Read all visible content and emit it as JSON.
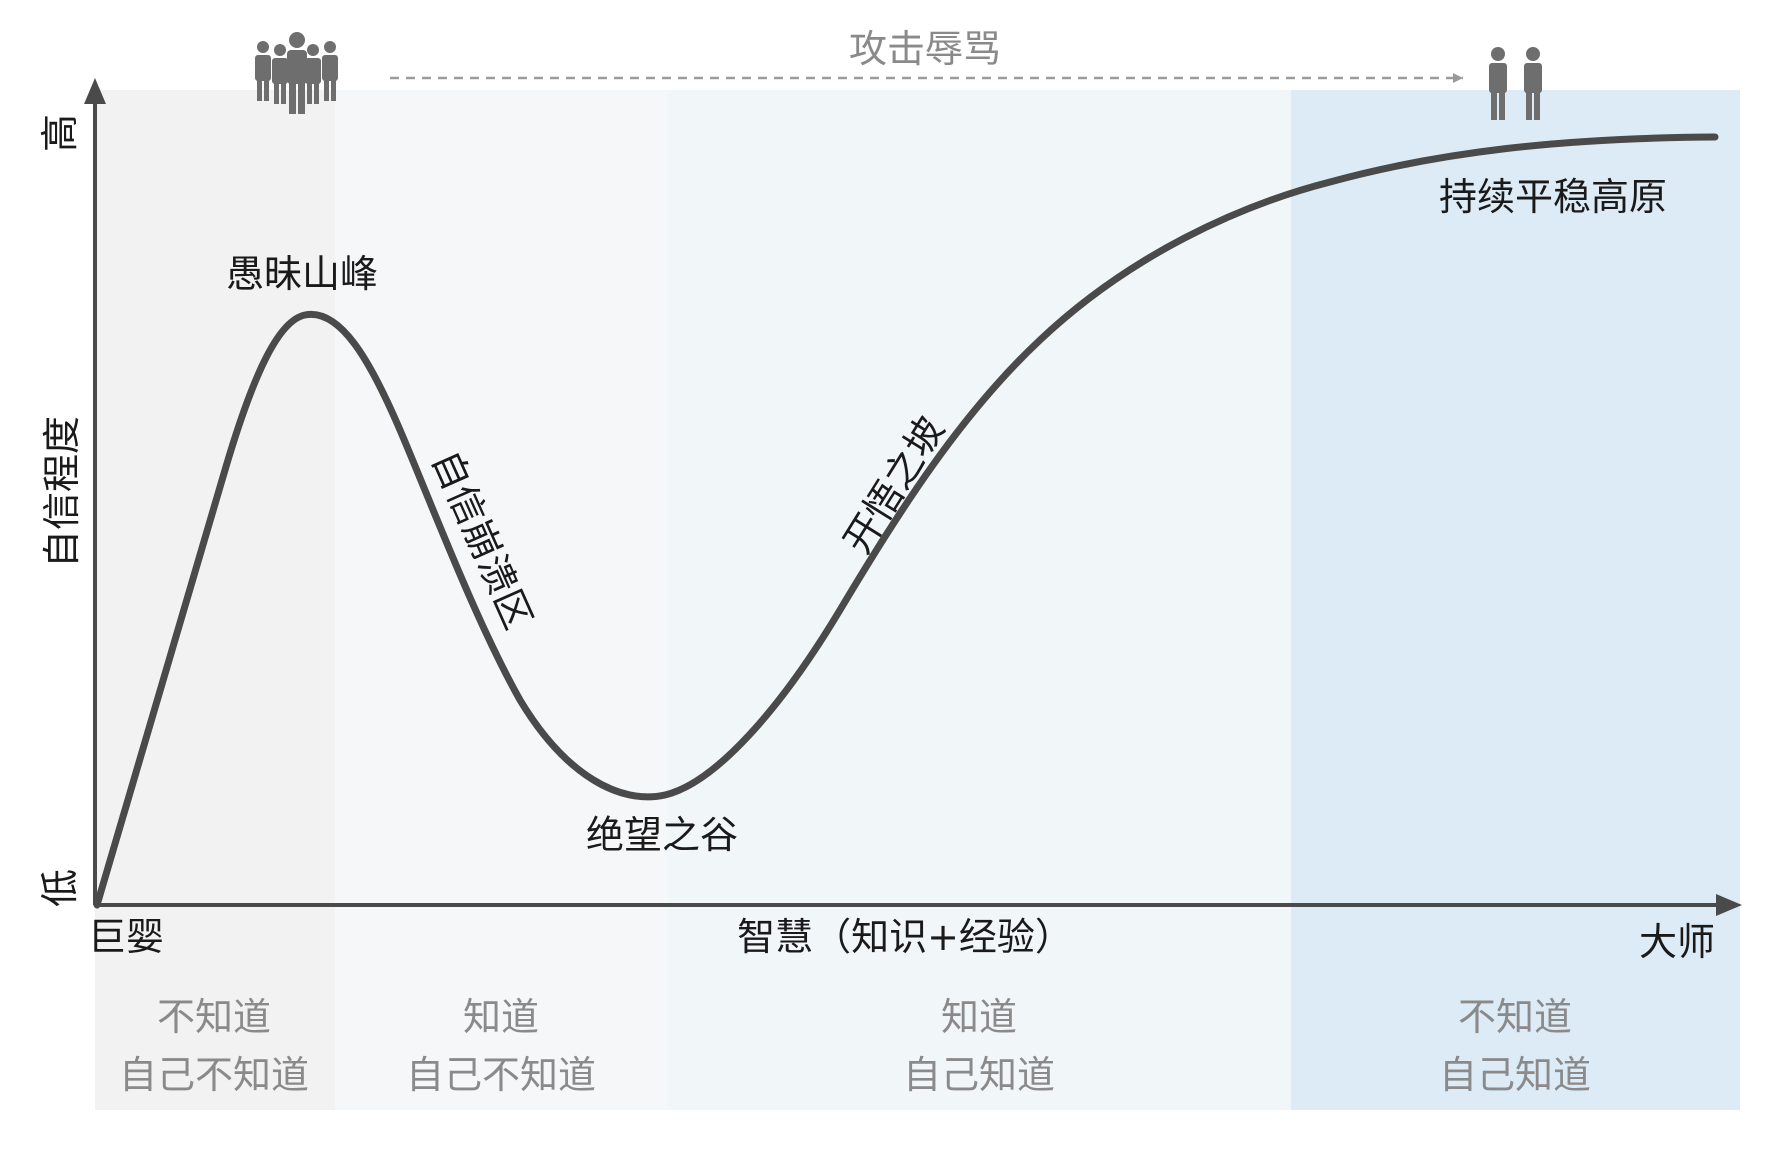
{
  "chart_data": {
    "type": "line",
    "title": "",
    "xlabel": "智慧（知识+经验）",
    "ylabel": "自信程度",
    "x_tick_labels": {
      "start": "巨婴",
      "end": "大师"
    },
    "y_tick_labels": {
      "low": "低",
      "high": "高"
    },
    "stage_labels": [
      {
        "name": "愚昧山峰"
      },
      {
        "name": "自信崩溃区"
      },
      {
        "name": "绝望之谷"
      },
      {
        "name": "开悟之坡"
      },
      {
        "name": "持续平稳高原"
      }
    ],
    "zones": [
      {
        "line1": "不知道",
        "line2": "自己不知道",
        "color": "#f2f2f2"
      },
      {
        "line1": "知道",
        "line2": "自己不知道",
        "color": "#f6f7f8"
      },
      {
        "line1": "知道",
        "line2": "自己知道",
        "color": "#f1f6f9"
      },
      {
        "line1": "不知道",
        "line2": "自己知道",
        "color": "#ddebf6"
      }
    ],
    "arrow_label": "攻击辱骂",
    "curve_color": "#4a4a4a"
  }
}
